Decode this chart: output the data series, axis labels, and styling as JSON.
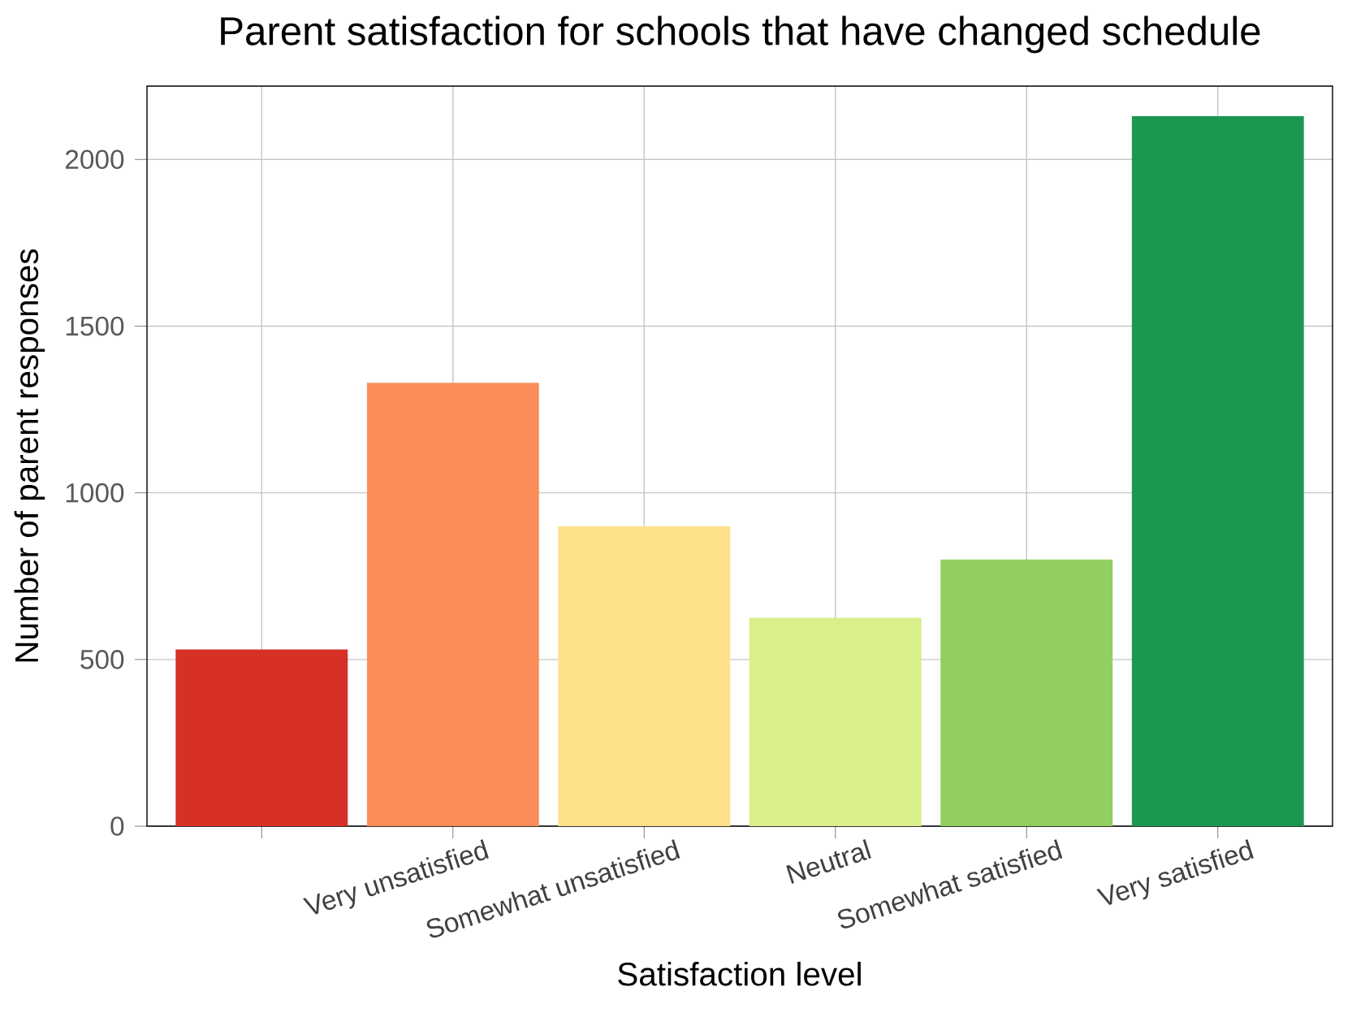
{
  "chart_data": {
    "type": "bar",
    "title": "Parent satisfaction for schools that have changed schedule",
    "xlabel": "Satisfaction level",
    "ylabel": "Number of parent responses",
    "categories": [
      null,
      "Very unsatisfied",
      "Somewhat unsatisfied",
      "Neutral",
      "Somewhat satisfied",
      "Very satisfied"
    ],
    "values": [
      530,
      1330,
      900,
      625,
      800,
      2130
    ],
    "colors": [
      "#d73027",
      "#fc8d59",
      "#fee08b",
      "#d9ef8b",
      "#91cf60",
      "#1a9850"
    ],
    "ylim": [
      0,
      2220
    ],
    "yticks": [
      0,
      500,
      1000,
      1500,
      2000
    ],
    "grid": true
  }
}
